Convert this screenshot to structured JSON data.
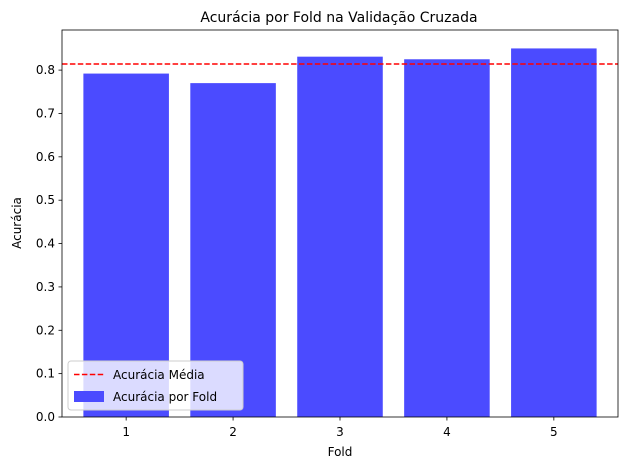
{
  "chart_data": {
    "type": "bar",
    "title": "Acurácia por Fold na Validação Cruzada",
    "xlabel": "Fold",
    "ylabel": "Acurácia",
    "categories": [
      "1",
      "2",
      "3",
      "4",
      "5"
    ],
    "series": [
      {
        "name": "Acurácia por Fold",
        "values": [
          0.792,
          0.77,
          0.831,
          0.825,
          0.85
        ],
        "color": "#4b4bff"
      }
    ],
    "reference_lines": [
      {
        "name": "Acurácia Média",
        "value": 0.814,
        "color": "#ff0000",
        "style": "dashed"
      }
    ],
    "ylim": [
      0,
      0.8925
    ],
    "yticks": [
      "0.0",
      "0.1",
      "0.2",
      "0.3",
      "0.4",
      "0.5",
      "0.6",
      "0.7",
      "0.8"
    ],
    "grid": false,
    "legend_position": "lower-left"
  }
}
